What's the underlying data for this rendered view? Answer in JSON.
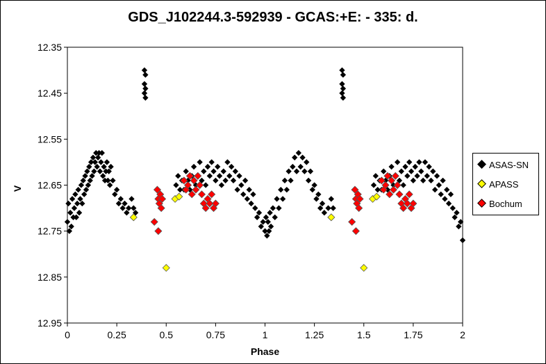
{
  "chart_data": {
    "type": "scatter",
    "title": "GDS_J102244.3-592939  - GCAS:+E: - 335: d.",
    "xlabel": "Phase",
    "ylabel": "V",
    "xlim": [
      0,
      2
    ],
    "ylim": [
      12.35,
      12.95
    ],
    "y_inverted": true,
    "x_ticks": [
      "0",
      "0.25",
      "0.5",
      "0.75",
      "1",
      "1.25",
      "1.5",
      "1.75",
      "2"
    ],
    "x_tick_values": [
      0,
      0.25,
      0.5,
      0.75,
      1,
      1.25,
      1.5,
      1.75,
      2
    ],
    "y_ticks": [
      "12.35",
      "12.45",
      "12.55",
      "12.65",
      "12.75",
      "12.85",
      "12.95"
    ],
    "y_tick_values": [
      12.35,
      12.45,
      12.55,
      12.65,
      12.75,
      12.85,
      12.95
    ],
    "grid": false,
    "legend_position": "right",
    "series": [
      {
        "name": "ASAS-SN",
        "color": "#000000",
        "points": [
          [
            0.0,
            12.73
          ],
          [
            0.005,
            12.69
          ],
          [
            0.01,
            12.75
          ],
          [
            0.015,
            12.71
          ],
          [
            0.02,
            12.74
          ],
          [
            0.025,
            12.68
          ],
          [
            0.03,
            12.72
          ],
          [
            0.035,
            12.7
          ],
          [
            0.04,
            12.67
          ],
          [
            0.045,
            12.72
          ],
          [
            0.05,
            12.69
          ],
          [
            0.055,
            12.66
          ],
          [
            0.06,
            12.71
          ],
          [
            0.065,
            12.68
          ],
          [
            0.07,
            12.65
          ],
          [
            0.075,
            12.69
          ],
          [
            0.08,
            12.64
          ],
          [
            0.085,
            12.67
          ],
          [
            0.09,
            12.63
          ],
          [
            0.095,
            12.66
          ],
          [
            0.1,
            12.62
          ],
          [
            0.105,
            12.65
          ],
          [
            0.11,
            12.61
          ],
          [
            0.115,
            12.64
          ],
          [
            0.12,
            12.6
          ],
          [
            0.125,
            12.63
          ],
          [
            0.13,
            12.59
          ],
          [
            0.135,
            12.62
          ],
          [
            0.14,
            12.6
          ],
          [
            0.145,
            12.58
          ],
          [
            0.15,
            12.61
          ],
          [
            0.155,
            12.59
          ],
          [
            0.16,
            12.58
          ],
          [
            0.165,
            12.62
          ],
          [
            0.17,
            12.6
          ],
          [
            0.175,
            12.58
          ],
          [
            0.18,
            12.63
          ],
          [
            0.185,
            12.61
          ],
          [
            0.19,
            12.64
          ],
          [
            0.195,
            12.62
          ],
          [
            0.2,
            12.6
          ],
          [
            0.205,
            12.64
          ],
          [
            0.21,
            12.62
          ],
          [
            0.215,
            12.65
          ],
          [
            0.22,
            12.61
          ],
          [
            0.23,
            12.64
          ],
          [
            0.24,
            12.67
          ],
          [
            0.25,
            12.66
          ],
          [
            0.26,
            12.69
          ],
          [
            0.27,
            12.68
          ],
          [
            0.28,
            12.7
          ],
          [
            0.29,
            12.69
          ],
          [
            0.3,
            12.71
          ],
          [
            0.31,
            12.7
          ],
          [
            0.325,
            12.68
          ],
          [
            0.335,
            12.7
          ],
          [
            0.345,
            12.71
          ],
          [
            0.39,
            12.4
          ],
          [
            0.395,
            12.41
          ],
          [
            0.39,
            12.43
          ],
          [
            0.395,
            12.44
          ],
          [
            0.39,
            12.45
          ],
          [
            0.395,
            12.46
          ],
          [
            0.55,
            12.65
          ],
          [
            0.56,
            12.63
          ],
          [
            0.57,
            12.66
          ],
          [
            0.58,
            12.64
          ],
          [
            0.59,
            12.66
          ],
          [
            0.6,
            12.62
          ],
          [
            0.61,
            12.64
          ],
          [
            0.62,
            12.66
          ],
          [
            0.63,
            12.63
          ],
          [
            0.64,
            12.61
          ],
          [
            0.65,
            12.65
          ],
          [
            0.66,
            12.63
          ],
          [
            0.67,
            12.6
          ],
          [
            0.68,
            12.64
          ],
          [
            0.69,
            12.62
          ],
          [
            0.7,
            12.65
          ],
          [
            0.71,
            12.61
          ],
          [
            0.72,
            12.63
          ],
          [
            0.73,
            12.6
          ],
          [
            0.74,
            12.62
          ],
          [
            0.75,
            12.64
          ],
          [
            0.76,
            12.61
          ],
          [
            0.77,
            12.63
          ],
          [
            0.78,
            12.65
          ],
          [
            0.79,
            12.62
          ],
          [
            0.8,
            12.64
          ],
          [
            0.81,
            12.6
          ],
          [
            0.82,
            12.63
          ],
          [
            0.83,
            12.61
          ],
          [
            0.84,
            12.64
          ],
          [
            0.85,
            12.62
          ],
          [
            0.86,
            12.66
          ],
          [
            0.87,
            12.63
          ],
          [
            0.88,
            12.65
          ],
          [
            0.89,
            12.67
          ],
          [
            0.9,
            12.64
          ],
          [
            0.91,
            12.68
          ],
          [
            0.92,
            12.66
          ],
          [
            0.93,
            12.69
          ],
          [
            0.94,
            12.67
          ],
          [
            0.95,
            12.7
          ],
          [
            0.96,
            12.72
          ],
          [
            0.97,
            12.71
          ],
          [
            0.98,
            12.74
          ],
          [
            0.99,
            12.73
          ],
          [
            1.0,
            12.75
          ],
          [
            1.005,
            12.72
          ],
          [
            1.01,
            12.76
          ],
          [
            1.015,
            12.73
          ],
          [
            1.02,
            12.75
          ],
          [
            1.025,
            12.71
          ],
          [
            1.03,
            12.74
          ],
          [
            1.04,
            12.7
          ],
          [
            1.05,
            12.72
          ],
          [
            1.06,
            12.68
          ],
          [
            1.07,
            12.7
          ],
          [
            1.08,
            12.66
          ],
          [
            1.09,
            12.68
          ],
          [
            1.1,
            12.64
          ],
          [
            1.11,
            12.66
          ],
          [
            1.12,
            12.62
          ],
          [
            1.13,
            12.64
          ],
          [
            1.14,
            12.61
          ],
          [
            1.15,
            12.59
          ],
          [
            1.16,
            12.62
          ],
          [
            1.17,
            12.58
          ],
          [
            1.18,
            12.61
          ],
          [
            1.19,
            12.59
          ],
          [
            1.2,
            12.62
          ],
          [
            1.21,
            12.6
          ],
          [
            1.22,
            12.64
          ],
          [
            1.23,
            12.62
          ],
          [
            1.24,
            12.66
          ],
          [
            1.25,
            12.65
          ],
          [
            1.26,
            12.68
          ],
          [
            1.27,
            12.67
          ],
          [
            1.28,
            12.7
          ],
          [
            1.29,
            12.69
          ],
          [
            1.3,
            12.71
          ],
          [
            1.32,
            12.7
          ],
          [
            1.335,
            12.68
          ],
          [
            1.345,
            12.7
          ],
          [
            1.39,
            12.4
          ],
          [
            1.395,
            12.41
          ],
          [
            1.39,
            12.43
          ],
          [
            1.395,
            12.44
          ],
          [
            1.39,
            12.45
          ],
          [
            1.395,
            12.46
          ],
          [
            1.55,
            12.65
          ],
          [
            1.56,
            12.63
          ],
          [
            1.57,
            12.66
          ],
          [
            1.58,
            12.64
          ],
          [
            1.59,
            12.66
          ],
          [
            1.6,
            12.62
          ],
          [
            1.61,
            12.64
          ],
          [
            1.62,
            12.66
          ],
          [
            1.63,
            12.63
          ],
          [
            1.64,
            12.61
          ],
          [
            1.65,
            12.65
          ],
          [
            1.66,
            12.63
          ],
          [
            1.67,
            12.6
          ],
          [
            1.68,
            12.64
          ],
          [
            1.69,
            12.62
          ],
          [
            1.7,
            12.65
          ],
          [
            1.71,
            12.61
          ],
          [
            1.72,
            12.63
          ],
          [
            1.73,
            12.6
          ],
          [
            1.74,
            12.62
          ],
          [
            1.75,
            12.64
          ],
          [
            1.76,
            12.61
          ],
          [
            1.77,
            12.63
          ],
          [
            1.78,
            12.6
          ],
          [
            1.79,
            12.62
          ],
          [
            1.8,
            12.64
          ],
          [
            1.81,
            12.6
          ],
          [
            1.82,
            12.63
          ],
          [
            1.83,
            12.61
          ],
          [
            1.84,
            12.64
          ],
          [
            1.85,
            12.62
          ],
          [
            1.86,
            12.66
          ],
          [
            1.87,
            12.63
          ],
          [
            1.88,
            12.65
          ],
          [
            1.89,
            12.67
          ],
          [
            1.9,
            12.64
          ],
          [
            1.91,
            12.68
          ],
          [
            1.92,
            12.66
          ],
          [
            1.93,
            12.69
          ],
          [
            1.94,
            12.67
          ],
          [
            1.95,
            12.7
          ],
          [
            1.96,
            12.72
          ],
          [
            1.97,
            12.71
          ],
          [
            1.98,
            12.74
          ],
          [
            1.99,
            12.73
          ],
          [
            2.0,
            12.77
          ]
        ]
      },
      {
        "name": "APASS",
        "color": "#ffff00",
        "points": [
          [
            0.335,
            12.72
          ],
          [
            0.5,
            12.83
          ],
          [
            0.545,
            12.68
          ],
          [
            0.565,
            12.675
          ],
          [
            1.335,
            12.72
          ],
          [
            1.5,
            12.83
          ],
          [
            1.545,
            12.68
          ],
          [
            1.565,
            12.675
          ]
        ]
      },
      {
        "name": "Bochum",
        "color": "#ff0000",
        "points": [
          [
            0.44,
            12.73
          ],
          [
            0.46,
            12.75
          ],
          [
            0.455,
            12.66
          ],
          [
            0.46,
            12.68
          ],
          [
            0.465,
            12.69
          ],
          [
            0.47,
            12.67
          ],
          [
            0.475,
            12.7
          ],
          [
            0.48,
            12.68
          ],
          [
            0.59,
            12.64
          ],
          [
            0.6,
            12.66
          ],
          [
            0.61,
            12.65
          ],
          [
            0.62,
            12.63
          ],
          [
            0.63,
            12.67
          ],
          [
            0.64,
            12.64
          ],
          [
            0.65,
            12.66
          ],
          [
            0.66,
            12.63
          ],
          [
            0.67,
            12.65
          ],
          [
            0.68,
            12.67
          ],
          [
            0.69,
            12.69
          ],
          [
            0.7,
            12.7
          ],
          [
            0.71,
            12.68
          ],
          [
            0.72,
            12.69
          ],
          [
            0.73,
            12.67
          ],
          [
            0.74,
            12.7
          ],
          [
            0.75,
            12.69
          ],
          [
            1.44,
            12.73
          ],
          [
            1.46,
            12.75
          ],
          [
            1.455,
            12.66
          ],
          [
            1.46,
            12.68
          ],
          [
            1.465,
            12.69
          ],
          [
            1.47,
            12.67
          ],
          [
            1.475,
            12.7
          ],
          [
            1.48,
            12.68
          ],
          [
            1.59,
            12.64
          ],
          [
            1.6,
            12.66
          ],
          [
            1.61,
            12.65
          ],
          [
            1.62,
            12.63
          ],
          [
            1.63,
            12.67
          ],
          [
            1.64,
            12.64
          ],
          [
            1.65,
            12.66
          ],
          [
            1.66,
            12.63
          ],
          [
            1.67,
            12.65
          ],
          [
            1.68,
            12.67
          ],
          [
            1.69,
            12.69
          ],
          [
            1.7,
            12.7
          ],
          [
            1.71,
            12.68
          ],
          [
            1.72,
            12.69
          ],
          [
            1.73,
            12.67
          ],
          [
            1.74,
            12.7
          ],
          [
            1.75,
            12.69
          ]
        ]
      }
    ]
  }
}
